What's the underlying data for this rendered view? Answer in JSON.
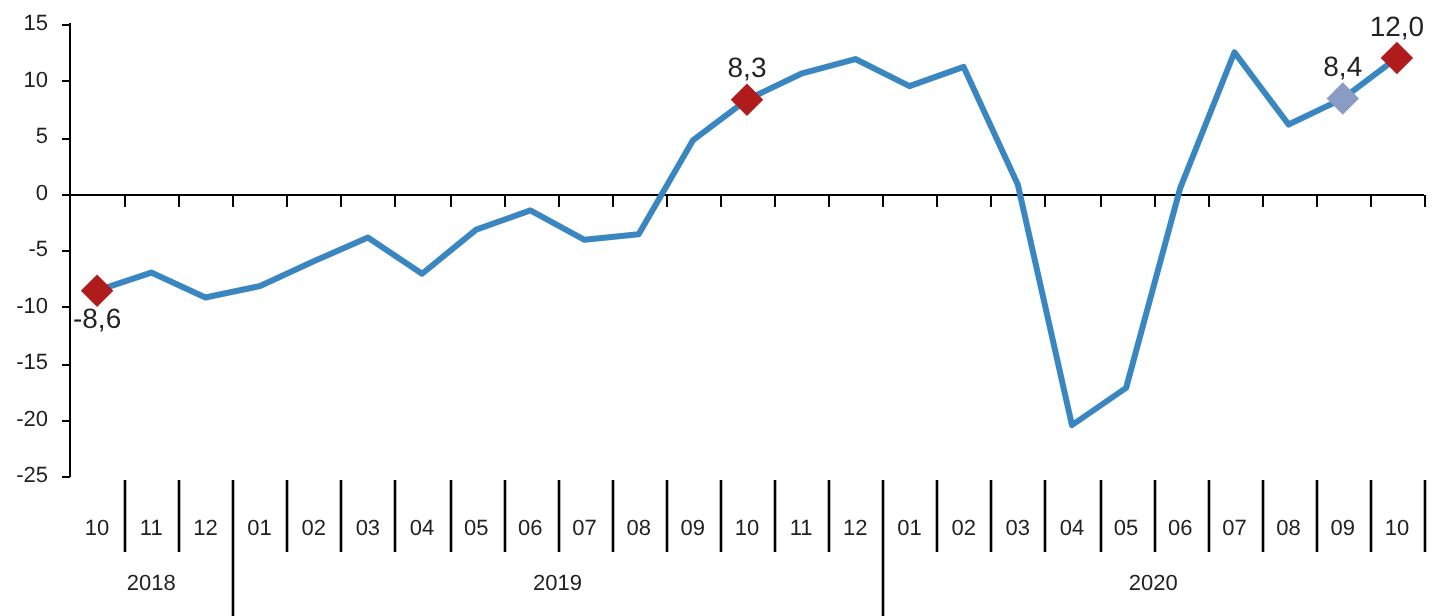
{
  "chart_data": {
    "type": "line",
    "categories": [
      "10",
      "11",
      "12",
      "01",
      "02",
      "03",
      "04",
      "05",
      "06",
      "07",
      "08",
      "09",
      "10",
      "11",
      "12",
      "01",
      "02",
      "03",
      "04",
      "05",
      "06",
      "07",
      "08",
      "09",
      "10"
    ],
    "annotations": [
      "2018",
      "2019",
      "2020"
    ],
    "series": [
      {
        "color": "#3a86c0",
        "values": [
          -8.6,
          -7.0,
          -9.2,
          -8.2,
          -6.0,
          -3.9,
          -7.1,
          -3.2,
          -1.5,
          -4.1,
          -3.6,
          4.7,
          8.3,
          10.6,
          11.9,
          9.5,
          11.2,
          0.8,
          -20.5,
          -17.2,
          0.5,
          12.5,
          6.1,
          8.4,
          12.0
        ],
        "colors": [
          "#b01c1c",
          "#3a86c0",
          "#3a86c0",
          "#3a86c0",
          "#3a86c0",
          "#3a86c0",
          "#3a86c0",
          "#3a86c0",
          "#3a86c0",
          "#3a86c0",
          "#3a86c0",
          "#3a86c0",
          "#b01c1c",
          "#3a86c0",
          "#3a86c0",
          "#3a86c0",
          "#3a86c0",
          "#3a86c0",
          "#3a86c0",
          "#3a86c0",
          "#3a86c0",
          "#3a86c0",
          "#3a86c0",
          "#8a9cc4",
          "#b01c1c"
        ],
        "value_labels": [
          "-8,6",
          null,
          null,
          null,
          null,
          null,
          null,
          null,
          null,
          null,
          null,
          null,
          "8,3",
          null,
          null,
          null,
          null,
          null,
          null,
          null,
          null,
          null,
          null,
          "8,4",
          "12,0"
        ]
      }
    ],
    "ylim": [
      -25,
      15
    ],
    "yticks": [
      -25,
      -20,
      -15,
      -10,
      -5,
      0,
      5,
      10,
      15
    ]
  }
}
